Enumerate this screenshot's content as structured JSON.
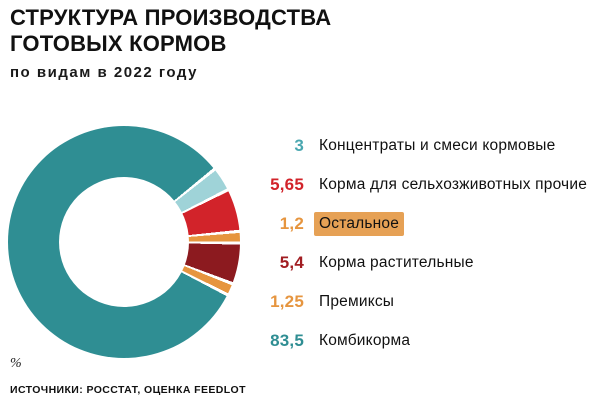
{
  "header": {
    "title_line1": "СТРУКТУРА ПРОИЗВОДСТВА",
    "title_line2": "ГОТОВЫХ КОРМОВ",
    "subtitle": "по видам в 2022 году"
  },
  "chart_data": {
    "type": "pie",
    "donut": true,
    "title": "Структура производства готовых кормов по видам в 2022 году",
    "unit": "%",
    "legend_position": "right",
    "start_angle_deg": 52,
    "gap_deg": 1.6,
    "series": [
      {
        "label": "Концентраты и смеси кормовые",
        "value": 3,
        "value_label": "3",
        "color": "#9fd3d8",
        "number_color": "#4aa7b0"
      },
      {
        "label": "Корма для сельхозживотных прочие",
        "value": 5.65,
        "value_label": "5,65",
        "color": "#d2232a",
        "number_color": "#d2232a"
      },
      {
        "label": "Остальное",
        "value": 1.2,
        "value_label": "1,2",
        "color": "#e6953f",
        "number_color": "#e6953f",
        "highlight_color": "#e6a155"
      },
      {
        "label": "Корма растительные",
        "value": 5.4,
        "value_label": "5,4",
        "color": "#8c1a1f",
        "number_color": "#a11d22"
      },
      {
        "label": "Премиксы",
        "value": 1.25,
        "value_label": "1,25",
        "color": "#e6953f",
        "number_color": "#e6953f"
      },
      {
        "label": "Комбикорма",
        "value": 83.5,
        "value_label": "83,5",
        "color": "#2f8e93",
        "number_color": "#2f8e93"
      }
    ]
  },
  "footer": {
    "unit": "%",
    "source": "ИСТОЧНИКИ: РОССТАТ, ОЦЕНКА FEEDLOT"
  }
}
